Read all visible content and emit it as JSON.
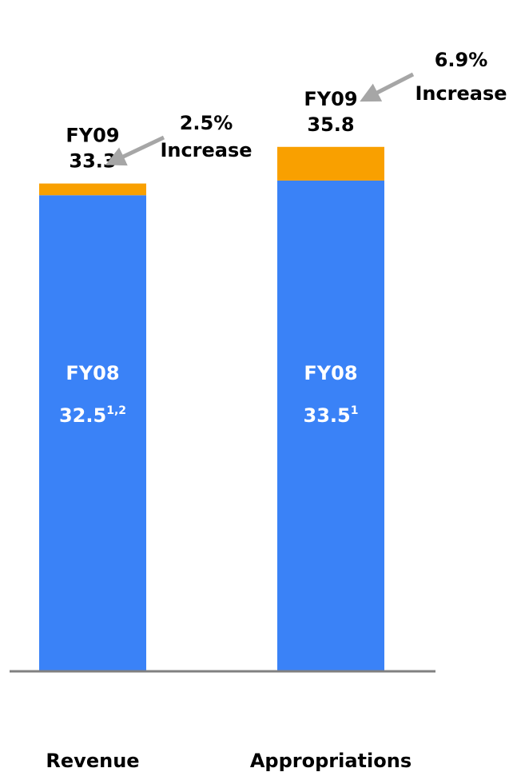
{
  "chart_data": {
    "type": "bar",
    "stacked": true,
    "categories": [
      "Revenue",
      "Appropriations"
    ],
    "ylim": [
      0,
      36
    ],
    "grid": false,
    "legend": "none",
    "colors": {
      "base": "#3a82f7",
      "increase": "#f9a000",
      "arrow": "#a6a6a6",
      "axis": "#808080",
      "text": "#000000",
      "inner_text": "#ffffff"
    },
    "bars": [
      {
        "category": "Revenue",
        "base": {
          "label": "FY08",
          "value": 32.5,
          "value_text": "32.5",
          "footnote": "1,2"
        },
        "total": {
          "label": "FY09",
          "value": 33.3,
          "value_text": "33.3"
        },
        "increase": {
          "pct": "2.5%",
          "word": "Increase"
        }
      },
      {
        "category": "Appropriations",
        "base": {
          "label": "FY08",
          "value": 33.5,
          "value_text": "33.5",
          "footnote": "1"
        },
        "total": {
          "label": "FY09",
          "value": 35.8,
          "value_text": "35.8"
        },
        "increase": {
          "pct": "6.9%",
          "word": "Increase"
        }
      }
    ]
  }
}
